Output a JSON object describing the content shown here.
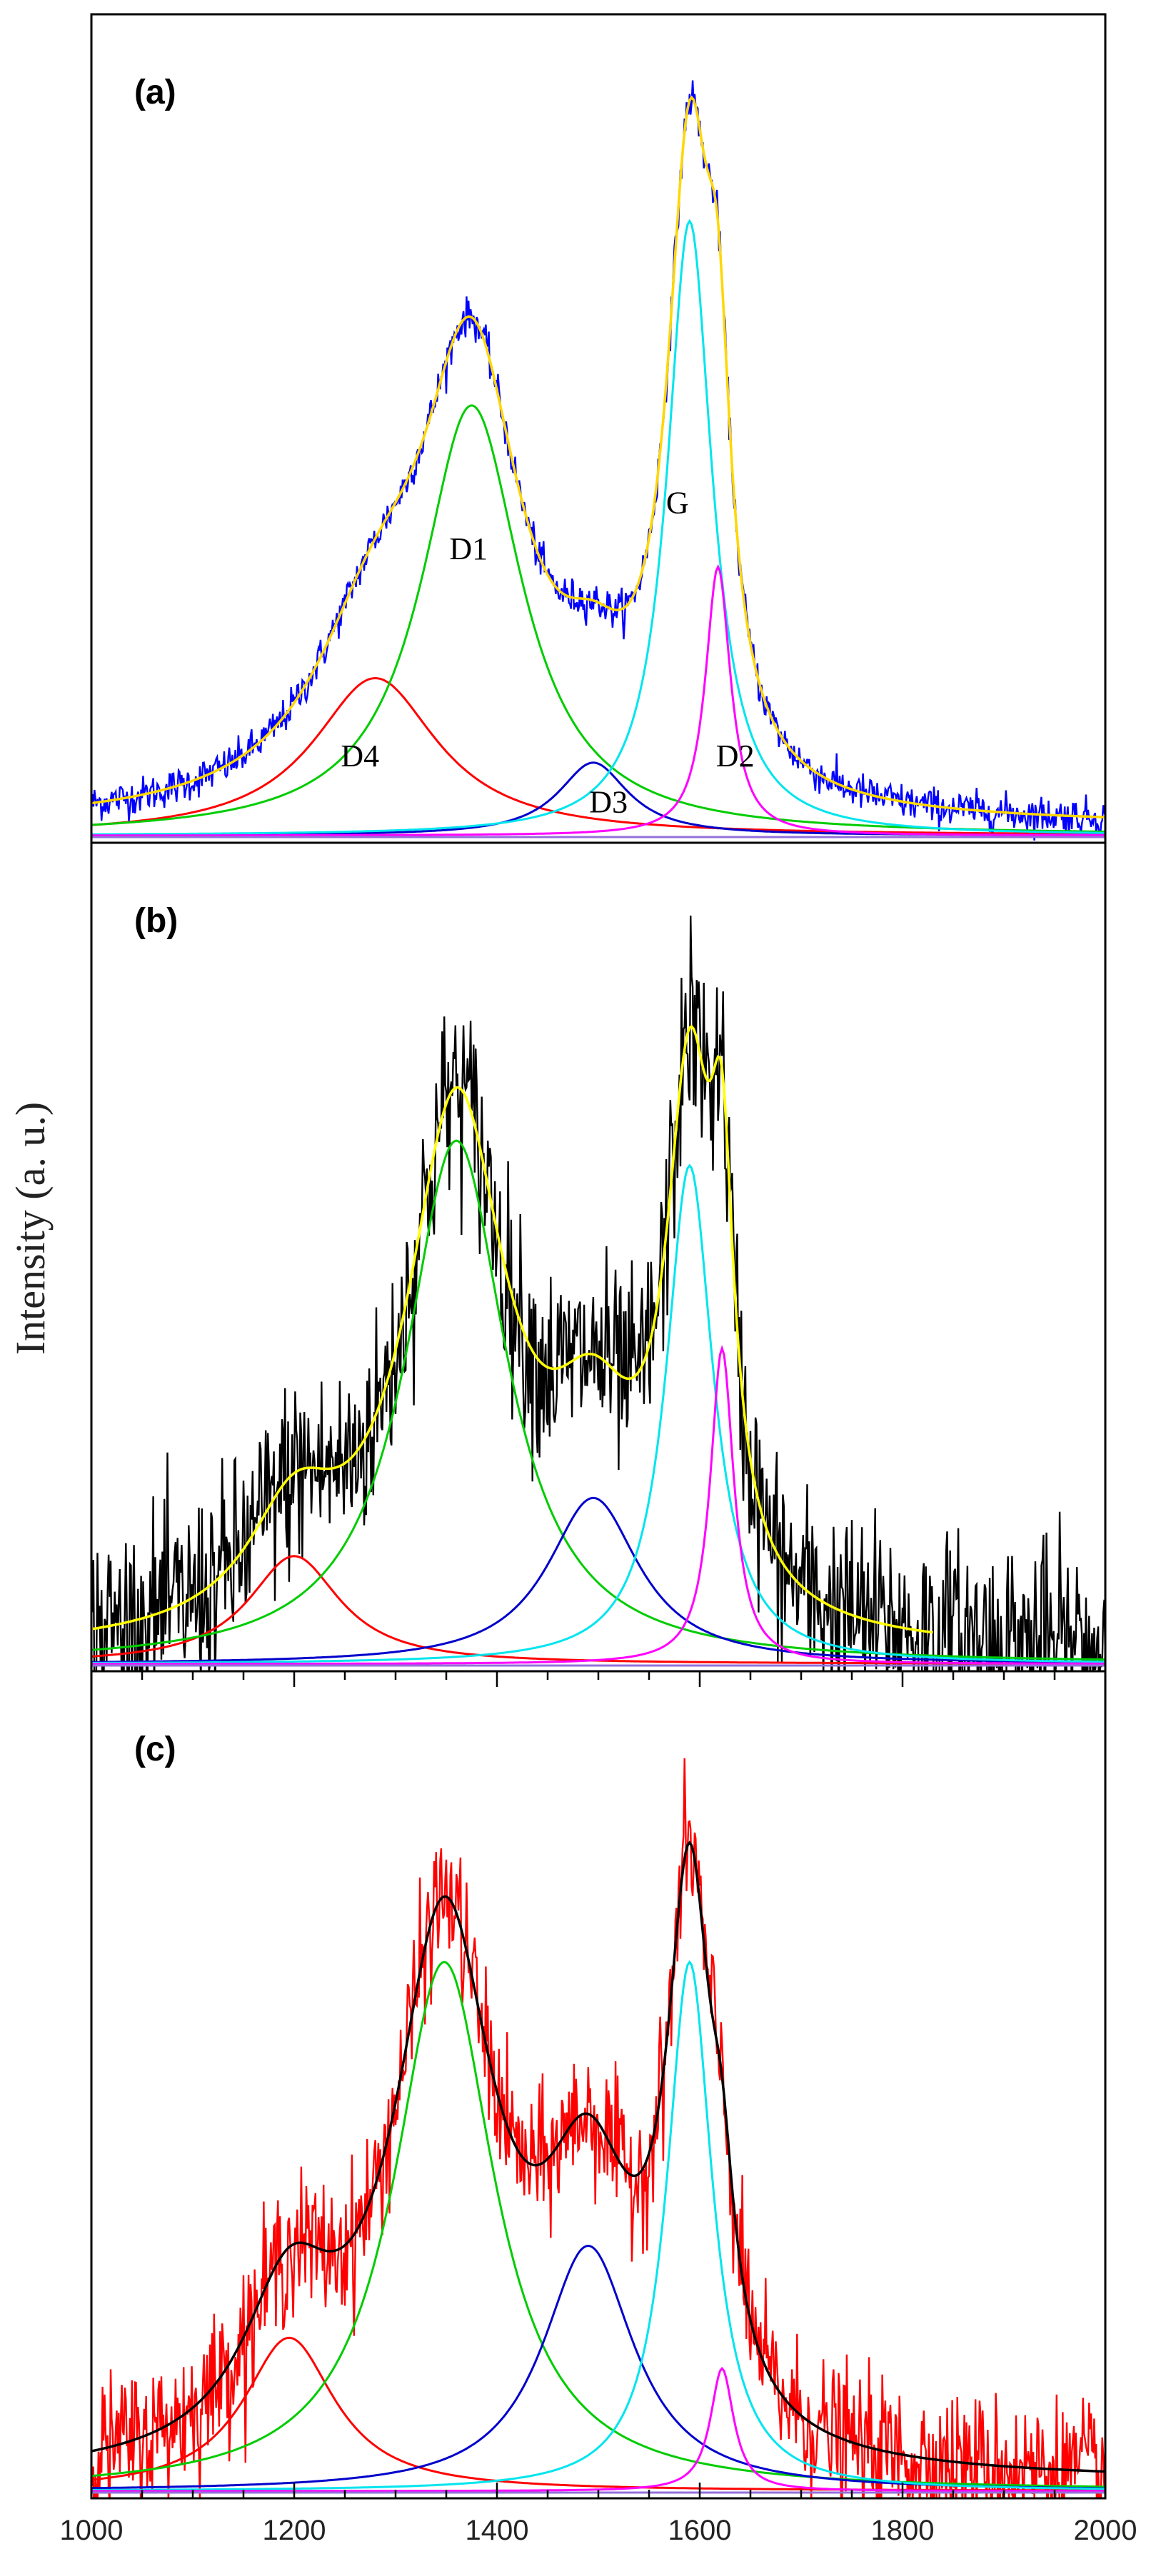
{
  "colors": {
    "D1": "#00cc00",
    "D2": "#ff00ff",
    "D3": "#0000cc",
    "D4": "#ff0000",
    "G": "#00e5ee",
    "baseline": "#9370db"
  },
  "chart_data": {
    "type": "line",
    "ylabel": "Intensity (a. u.)",
    "xlim": [
      1000,
      2000
    ],
    "x_ticks": [
      "1000",
      "1200",
      "1400",
      "1600",
      "1800",
      "2000"
    ],
    "panels": [
      {
        "label": "(a)",
        "data_color": "#0000ff",
        "fit_color": "#ffd700",
        "noise": 0.012,
        "fit_range": [
          1000,
          2000
        ],
        "raw_range": [
          1000,
          2000
        ],
        "ylim": [
          0,
          1.06
        ],
        "peaks": [
          {
            "name": "D4",
            "center": 1280,
            "width": 75,
            "height": 0.205
          },
          {
            "name": "D1",
            "center": 1375,
            "width": 60,
            "height": 0.56
          },
          {
            "name": "D3",
            "center": 1495,
            "width": 42,
            "height": 0.095
          },
          {
            "name": "G",
            "center": 1590,
            "width": 27,
            "height": 0.8
          },
          {
            "name": "D2",
            "center": 1618,
            "width": 15,
            "height": 0.35
          }
        ],
        "peak_labels": [
          {
            "text": "D1",
            "x": 1372,
            "y": 0.36
          },
          {
            "text": "D4",
            "x": 1265,
            "y": 0.09
          },
          {
            "text": "D3",
            "x": 1510,
            "y": 0.03
          },
          {
            "text": "G",
            "x": 1578,
            "y": 0.42
          },
          {
            "text": "D2",
            "x": 1635,
            "y": 0.09
          }
        ]
      },
      {
        "label": "(b)",
        "data_color": "#000000",
        "fit_color": "#ffff00",
        "noise": 0.06,
        "fit_range": [
          1000,
          1830
        ],
        "raw_range": [
          1000,
          2000
        ],
        "ylim": [
          0,
          0.98
        ],
        "peaks": [
          {
            "name": "D4",
            "center": 1200,
            "width": 55,
            "height": 0.13
          },
          {
            "name": "D1",
            "center": 1360,
            "width": 60,
            "height": 0.63
          },
          {
            "name": "D3",
            "center": 1495,
            "width": 55,
            "height": 0.2
          },
          {
            "name": "G",
            "center": 1590,
            "width": 28,
            "height": 0.6
          },
          {
            "name": "D2",
            "center": 1622,
            "width": 14,
            "height": 0.38
          }
        ],
        "peak_labels": []
      },
      {
        "label": "(c)",
        "data_color": "#ff0000",
        "fit_color": "#000000",
        "noise": 0.045,
        "fit_range": [
          1000,
          2000
        ],
        "raw_range": [
          1000,
          2000
        ],
        "ylim": [
          0,
          1.06
        ],
        "peaks": [
          {
            "name": "D4",
            "center": 1195,
            "width": 55,
            "height": 0.2
          },
          {
            "name": "D1",
            "center": 1348,
            "width": 60,
            "height": 0.69
          },
          {
            "name": "D3",
            "center": 1490,
            "width": 55,
            "height": 0.32
          },
          {
            "name": "G",
            "center": 1590,
            "width": 27,
            "height": 0.69
          },
          {
            "name": "D2",
            "center": 1622,
            "width": 14,
            "height": 0.16
          }
        ],
        "peak_labels": []
      }
    ]
  }
}
